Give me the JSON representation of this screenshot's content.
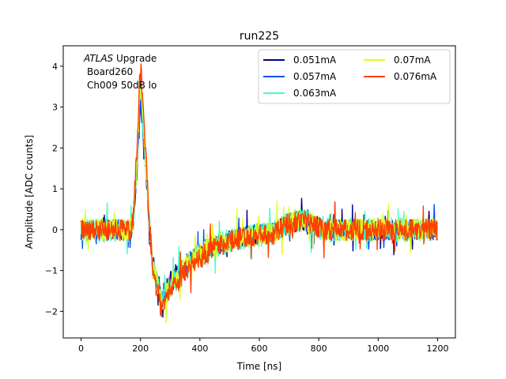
{
  "chart_data": {
    "type": "line",
    "title": "run225",
    "xlabel": "Time [ns]",
    "ylabel": "Amplitude [ADC counts]",
    "xlim": [
      -60,
      1260
    ],
    "ylim": [
      -2.65,
      4.5
    ],
    "xticks": [
      0,
      200,
      400,
      600,
      800,
      1000,
      1200
    ],
    "yticks": [
      -2,
      -1,
      0,
      1,
      2,
      3,
      4
    ],
    "grid": false,
    "legend_position": "top-right",
    "legend_columns": 2,
    "annotation": {
      "italic": "ATLAS",
      "rest": " Upgrade",
      "line2": "Board260",
      "line3": "Ch009 50dB lo"
    },
    "x_range": [
      0,
      1200
    ],
    "series": [
      {
        "name": "0.051mA",
        "color": "#00008f",
        "noise": 0.24,
        "peak": 3.1,
        "undershoot": -1.6
      },
      {
        "name": "0.057mA",
        "color": "#0050ff",
        "noise": 0.26,
        "peak": 3.3,
        "undershoot": -1.7
      },
      {
        "name": "0.063mA",
        "color": "#40ffbf",
        "noise": 0.3,
        "peak": 3.5,
        "undershoot": -1.8
      },
      {
        "name": "0.07mA",
        "color": "#ddff21",
        "noise": 0.28,
        "peak": 3.7,
        "undershoot": -1.8
      },
      {
        "name": "0.076mA",
        "color": "#ff4000",
        "noise": 0.27,
        "peak": 4.1,
        "undershoot": -2.0
      }
    ]
  }
}
